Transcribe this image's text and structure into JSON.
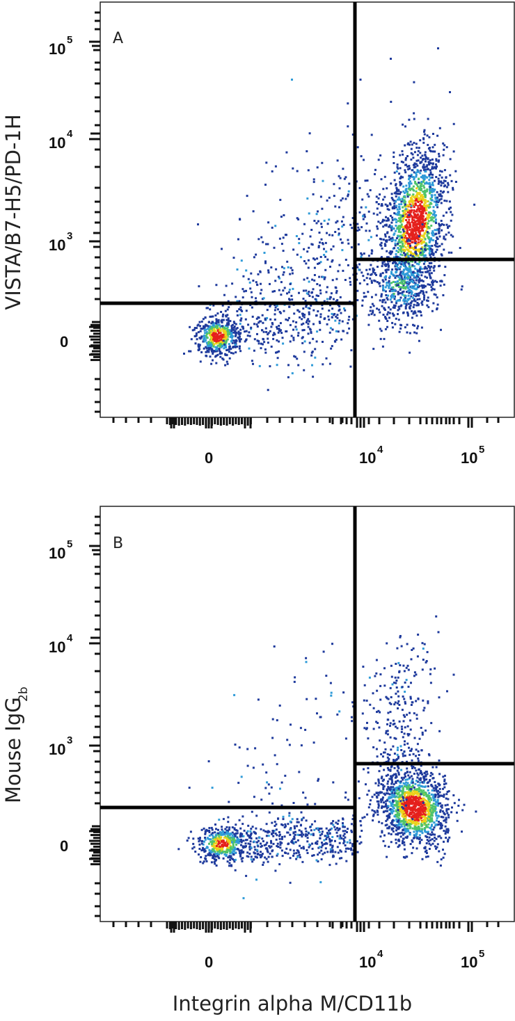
{
  "chart_data": [
    {
      "type": "scatter",
      "panel_label": "A",
      "xlabel": "",
      "ylabel": "VISTA/B7-H5/PD-1H",
      "x_scale": "biexponential",
      "y_scale": "biexponential",
      "x_ticks": [
        {
          "base": "0",
          "exp": ""
        },
        {
          "base": "10",
          "exp": "4"
        },
        {
          "base": "10",
          "exp": "5"
        }
      ],
      "y_ticks": [
        {
          "base": "0",
          "exp": ""
        },
        {
          "base": "10",
          "exp": "3"
        },
        {
          "base": "10",
          "exp": "4"
        },
        {
          "base": "10",
          "exp": "5"
        }
      ],
      "quadrant_gates": {
        "x_split": 7000,
        "y_split_left": 250,
        "y_split_right": 700
      },
      "populations": [
        {
          "name": "",
          "x_center": 0,
          "y_center": 50,
          "relative_density": "medium"
        },
        {
          "name": "",
          "x_center": 28000,
          "y_center": 1500,
          "relative_density": "high"
        }
      ],
      "colormap": [
        "#1e3a9c",
        "#2f9bd8",
        "#4fc46a",
        "#ecd21a",
        "#e5201c"
      ]
    },
    {
      "type": "scatter",
      "panel_label": "B",
      "xlabel": "Integrin alpha M/CD11b",
      "ylabel": "Mouse IgG",
      "ylabel_subscript": "2b",
      "x_scale": "biexponential",
      "y_scale": "biexponential",
      "x_ticks": [
        {
          "base": "0",
          "exp": ""
        },
        {
          "base": "10",
          "exp": "4"
        },
        {
          "base": "10",
          "exp": "5"
        }
      ],
      "y_ticks": [
        {
          "base": "0",
          "exp": ""
        },
        {
          "base": "10",
          "exp": "3"
        },
        {
          "base": "10",
          "exp": "4"
        },
        {
          "base": "10",
          "exp": "5"
        }
      ],
      "quadrant_gates": {
        "x_split": 7000,
        "y_split_left": 250,
        "y_split_right": 700
      },
      "populations": [
        {
          "name": "",
          "x_center": 0,
          "y_center": 20,
          "relative_density": "medium"
        },
        {
          "name": "",
          "x_center": 25000,
          "y_center": 280,
          "relative_density": "high"
        }
      ],
      "colormap": [
        "#1e3a9c",
        "#2f9bd8",
        "#4fc46a",
        "#ecd21a",
        "#e5201c"
      ]
    }
  ]
}
